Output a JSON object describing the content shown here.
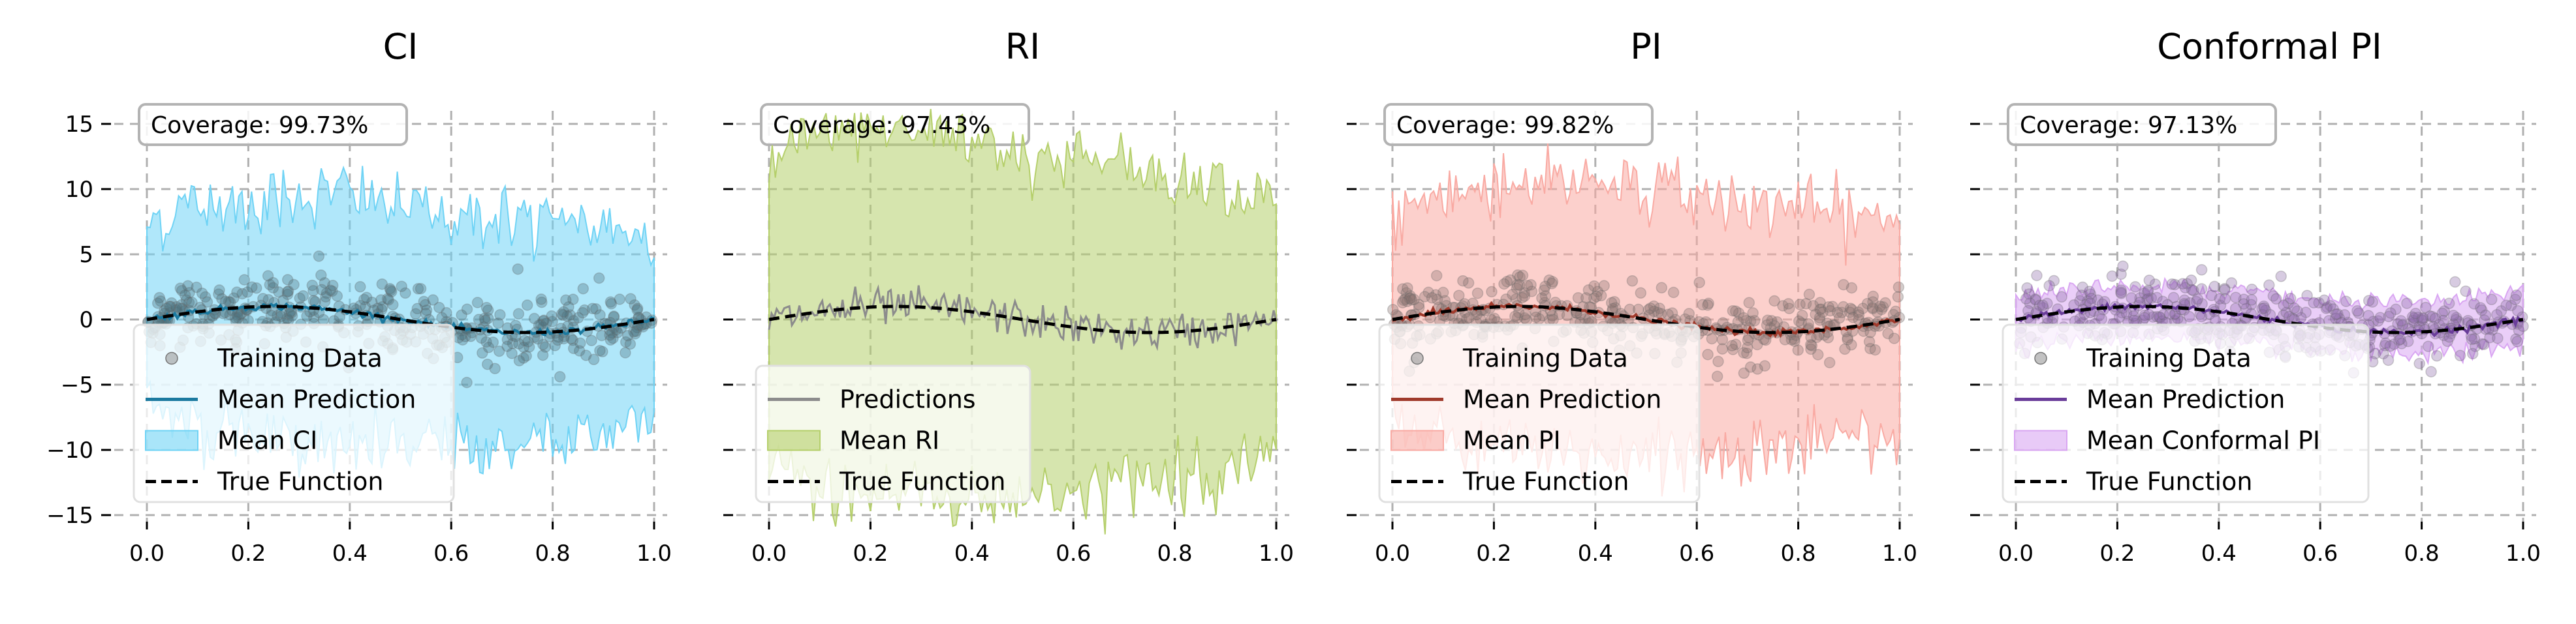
{
  "chart_data": [
    {
      "type": "line",
      "title": "CI",
      "coverage_label": "Coverage: 99.73%",
      "xlim": [
        0.0,
        1.0
      ],
      "ylim": [
        -15,
        15
      ],
      "xticks": [
        0.0,
        0.2,
        0.4,
        0.6,
        0.8,
        1.0
      ],
      "xtick_labels": [
        "0.0",
        "0.2",
        "0.4",
        "0.6",
        "0.8",
        "1.0"
      ],
      "yticks": [
        15,
        10,
        5,
        0,
        -5,
        -10,
        -15
      ],
      "ytick_labels": [
        "15",
        "10",
        "5",
        "0",
        "−5",
        "−10",
        "−15"
      ],
      "band_color": "#6fd3f5",
      "line_color": "#1b7aa0",
      "band_x": [
        0.0,
        0.1,
        0.2,
        0.3,
        0.4,
        0.5,
        0.6,
        0.7,
        0.8,
        0.9,
        1.0
      ],
      "band_upper": [
        7.5,
        8.8,
        9.0,
        9.5,
        9.8,
        8.5,
        8.0,
        7.8,
        7.2,
        7.0,
        7.0
      ],
      "band_lower": [
        -6.5,
        -8.0,
        -9.0,
        -9.5,
        -10.0,
        -9.5,
        -10.0,
        -9.8,
        -9.0,
        -8.5,
        -7.5
      ],
      "legend": [
        {
          "kind": "dots",
          "label": "Training Data"
        },
        {
          "kind": "line",
          "label": "Mean Prediction"
        },
        {
          "kind": "band",
          "label": "Mean CI"
        },
        {
          "kind": "dashed",
          "label": "True Function"
        }
      ]
    },
    {
      "type": "line",
      "title": "RI",
      "coverage_label": "Coverage: 97.43%",
      "xlim": [
        0.0,
        1.0
      ],
      "ylim": [
        -15,
        15
      ],
      "xticks": [
        0.0,
        0.2,
        0.4,
        0.6,
        0.8,
        1.0
      ],
      "xtick_labels": [
        "0.0",
        "0.2",
        "0.4",
        "0.6",
        "0.8",
        "1.0"
      ],
      "band_color": "#b5cf6b",
      "line_color": "#8c8c8c",
      "band_x": [
        0.0,
        0.1,
        0.2,
        0.3,
        0.4,
        0.5,
        0.6,
        0.7,
        0.8,
        0.9,
        1.0
      ],
      "band_upper": [
        12.0,
        14.0,
        14.5,
        14.5,
        14.0,
        13.0,
        12.0,
        12.0,
        11.0,
        10.5,
        9.0
      ],
      "band_lower": [
        -11.0,
        -13.0,
        -13.5,
        -13.0,
        -14.0,
        -13.5,
        -13.0,
        -12.5,
        -12.0,
        -11.5,
        -10.5
      ],
      "legend": [
        {
          "kind": "line",
          "label": "Predictions"
        },
        {
          "kind": "band",
          "label": "Mean RI"
        },
        {
          "kind": "dashed",
          "label": "True Function"
        }
      ]
    },
    {
      "type": "line",
      "title": "PI",
      "coverage_label": "Coverage: 99.82%",
      "xlim": [
        0.0,
        1.0
      ],
      "ylim": [
        -15,
        15
      ],
      "xticks": [
        0.0,
        0.2,
        0.4,
        0.6,
        0.8,
        1.0
      ],
      "xtick_labels": [
        "0.0",
        "0.2",
        "0.4",
        "0.6",
        "0.8",
        "1.0"
      ],
      "band_color": "#f9aaa3",
      "line_color": "#a03a2c",
      "band_x": [
        0.0,
        0.1,
        0.2,
        0.3,
        0.4,
        0.5,
        0.6,
        0.7,
        0.8,
        0.9,
        1.0
      ],
      "band_upper": [
        8.0,
        9.5,
        10.5,
        10.5,
        11.0,
        10.0,
        9.5,
        9.0,
        8.5,
        8.0,
        7.5
      ],
      "band_lower": [
        -8.0,
        -9.5,
        -10.0,
        -10.5,
        -10.5,
        -10.0,
        -10.5,
        -10.0,
        -9.5,
        -9.0,
        -8.5
      ],
      "legend": [
        {
          "kind": "dots",
          "label": "Training Data"
        },
        {
          "kind": "line",
          "label": "Mean Prediction"
        },
        {
          "kind": "band",
          "label": "Mean PI"
        },
        {
          "kind": "dashed",
          "label": "True Function"
        }
      ]
    },
    {
      "type": "line",
      "title": "Conformal PI",
      "coverage_label": "Coverage: 97.13%",
      "xlim": [
        0.0,
        1.0
      ],
      "ylim": [
        -15,
        15
      ],
      "xticks": [
        0.0,
        0.2,
        0.4,
        0.6,
        0.8,
        1.0
      ],
      "xtick_labels": [
        "0.0",
        "0.2",
        "0.4",
        "0.6",
        "0.8",
        "1.0"
      ],
      "band_color": "#d9a6f2",
      "line_color": "#6a3d9a",
      "band_x": [
        0.0,
        0.1,
        0.2,
        0.3,
        0.4,
        0.5,
        0.6,
        0.7,
        0.8,
        0.9,
        1.0
      ],
      "band_upper": [
        2.0,
        2.3,
        2.6,
        2.6,
        2.4,
        1.9,
        1.5,
        1.3,
        1.3,
        1.6,
        2.1
      ],
      "band_lower": [
        -2.0,
        -1.6,
        -1.4,
        -1.4,
        -1.6,
        -2.1,
        -2.5,
        -2.7,
        -2.7,
        -2.4,
        -1.9
      ],
      "legend": [
        {
          "kind": "dots",
          "label": "Training Data"
        },
        {
          "kind": "line",
          "label": "Mean Prediction"
        },
        {
          "kind": "band",
          "label": "Mean Conformal PI"
        },
        {
          "kind": "dashed",
          "label": "True Function"
        }
      ]
    }
  ]
}
